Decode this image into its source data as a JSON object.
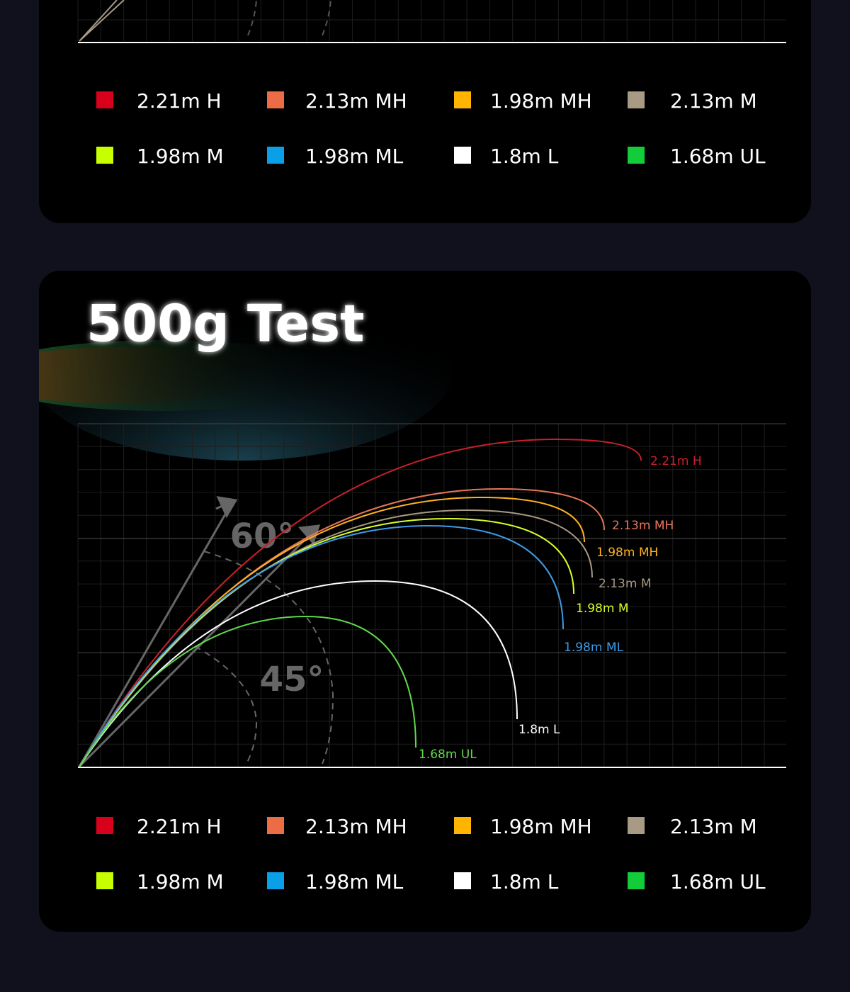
{
  "top_panel": {
    "legend": [
      {
        "label": "2.21m H",
        "color": "#d9001b"
      },
      {
        "label": "2.13m MH",
        "color": "#ec6c45"
      },
      {
        "label": "1.98m MH",
        "color": "#ffb400"
      },
      {
        "label": "2.13m M",
        "color": "#a89a85"
      },
      {
        "label": "1.98m M",
        "color": "#c6ff00"
      },
      {
        "label": "1.98m ML",
        "color": "#0aa0e8"
      },
      {
        "label": "1.8m  L",
        "color": "#ffffff"
      },
      {
        "label": "1.68m UL",
        "color": "#12cc3a"
      }
    ]
  },
  "test_panel": {
    "title": "500g Test",
    "angles": [
      "60°",
      "45°"
    ],
    "curves": [
      {
        "label": "2.21m H",
        "color": "#c8202a"
      },
      {
        "label": "2.13m MH",
        "color": "#e8755a"
      },
      {
        "label": "1.98m MH",
        "color": "#ffb21e"
      },
      {
        "label": "2.13m M",
        "color": "#a89a85"
      },
      {
        "label": "1.98m M",
        "color": "#d4ff2a"
      },
      {
        "label": "1.98m ML",
        "color": "#3c9ce8"
      },
      {
        "label": "1.8m  L",
        "color": "#ffffff"
      },
      {
        "label": "1.68m UL",
        "color": "#5fd84a"
      }
    ],
    "legend": [
      {
        "label": "2.21m H",
        "color": "#d9001b"
      },
      {
        "label": "2.13m MH",
        "color": "#ec6c45"
      },
      {
        "label": "1.98m MH",
        "color": "#ffb400"
      },
      {
        "label": "2.13m M",
        "color": "#a89a85"
      },
      {
        "label": "1.98m M",
        "color": "#c6ff00"
      },
      {
        "label": "1.98m ML",
        "color": "#0aa0e8"
      },
      {
        "label": "1.8m  L",
        "color": "#ffffff"
      },
      {
        "label": "1.68m UL",
        "color": "#12cc3a"
      }
    ]
  }
}
